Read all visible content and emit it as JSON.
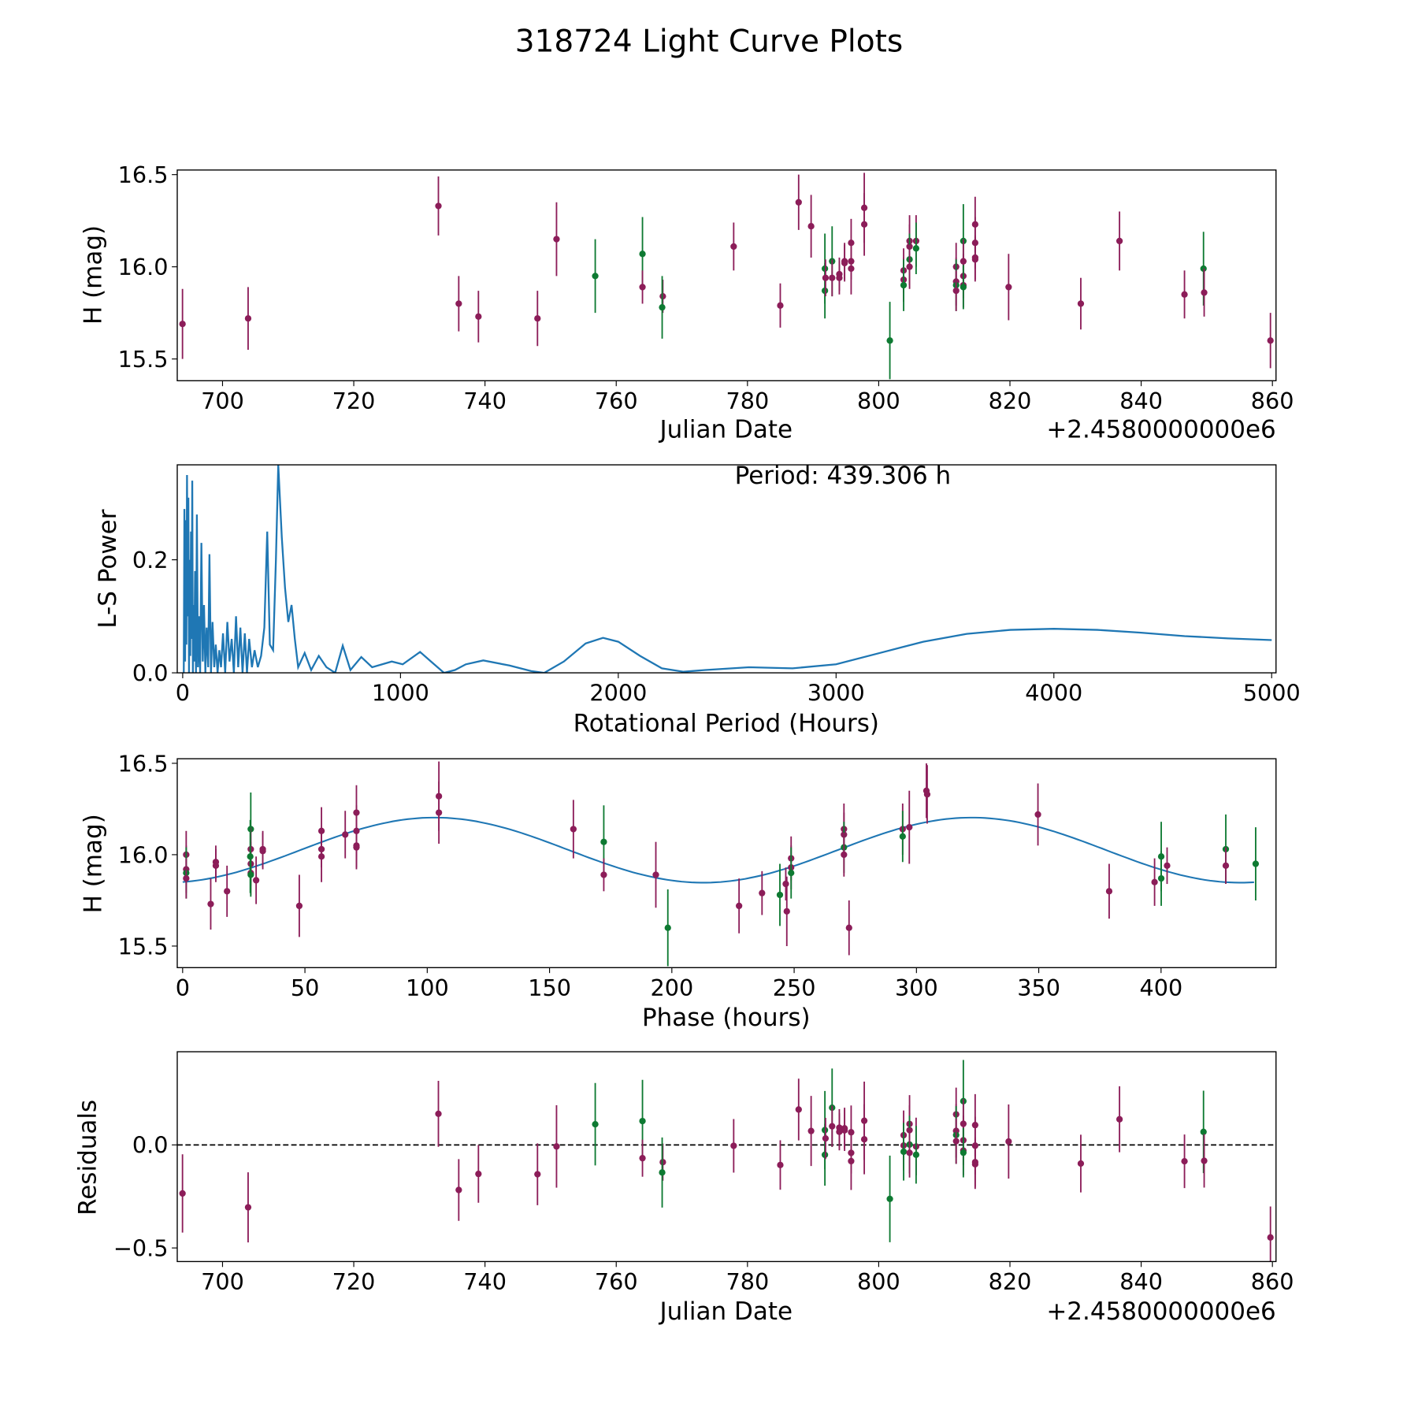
{
  "title": "318724 Light Curve Plots",
  "colors": {
    "ztf_r": "#8c1d59",
    "ztf_g": "#0e7a32",
    "model": "#1f77b4",
    "periodogram": "#1f77b4"
  },
  "chart_data": [
    {
      "type": "scatter",
      "id": "lightcurve",
      "xlabel": "Julian Date",
      "ylabel": "H (mag)",
      "offset_label": "+2.4580000000e6",
      "xlim": [
        693.1,
        860.55
      ],
      "ylim": [
        15.382,
        16.525
      ],
      "xticks": [
        700,
        720,
        740,
        760,
        780,
        800,
        820,
        840,
        860
      ],
      "yticks": [
        {
          "v": 15.5,
          "label": "15.5"
        },
        {
          "v": 16.0,
          "label": "16.0"
        },
        {
          "v": 16.5,
          "label": "16.5"
        }
      ],
      "points_format": [
        "julian_date_offset",
        "H_mag",
        "error",
        "band"
      ],
      "points": [
        [
          693.9,
          15.69,
          0.19,
          "m"
        ],
        [
          703.9,
          15.72,
          0.17,
          "m"
        ],
        [
          732.9,
          16.33,
          0.16,
          "m"
        ],
        [
          736.0,
          15.8,
          0.15,
          "m"
        ],
        [
          739.0,
          15.73,
          0.14,
          "m"
        ],
        [
          748.0,
          15.72,
          0.15,
          "m"
        ],
        [
          750.9,
          16.15,
          0.2,
          "m"
        ],
        [
          756.8,
          15.95,
          0.2,
          "g"
        ],
        [
          764.0,
          16.07,
          0.2,
          "g"
        ],
        [
          764.0,
          15.89,
          0.09,
          "m"
        ],
        [
          767.1,
          15.84,
          0.09,
          "m"
        ],
        [
          767.0,
          15.78,
          0.17,
          "g"
        ],
        [
          777.9,
          16.11,
          0.13,
          "m"
        ],
        [
          785.0,
          15.79,
          0.12,
          "m"
        ],
        [
          787.8,
          16.35,
          0.15,
          "m"
        ],
        [
          789.7,
          16.22,
          0.17,
          "m"
        ],
        [
          791.8,
          15.99,
          0.19,
          "g"
        ],
        [
          791.8,
          15.87,
          0.15,
          "g"
        ],
        [
          791.9,
          15.94,
          0.1,
          "m"
        ],
        [
          792.9,
          16.03,
          0.19,
          "g"
        ],
        [
          792.9,
          15.94,
          0.1,
          "m"
        ],
        [
          794.0,
          15.96,
          0.09,
          "m"
        ],
        [
          794.0,
          15.94,
          0.09,
          "m"
        ],
        [
          794.8,
          16.03,
          0.1,
          "m"
        ],
        [
          794.8,
          16.02,
          0.1,
          "m"
        ],
        [
          795.8,
          16.03,
          0.1,
          "m"
        ],
        [
          795.8,
          15.99,
          0.14,
          "m"
        ],
        [
          795.8,
          16.13,
          0.13,
          "m"
        ],
        [
          797.8,
          16.32,
          0.19,
          "m"
        ],
        [
          797.8,
          16.23,
          0.17,
          "m"
        ],
        [
          801.7,
          15.6,
          0.21,
          "g"
        ],
        [
          803.8,
          15.98,
          0.12,
          "m"
        ],
        [
          803.8,
          15.93,
          0.12,
          "m"
        ],
        [
          803.8,
          15.9,
          0.14,
          "g"
        ],
        [
          804.7,
          16.14,
          0.14,
          "m"
        ],
        [
          804.7,
          16.11,
          0.12,
          "m"
        ],
        [
          804.7,
          16.04,
          0.14,
          "g"
        ],
        [
          804.7,
          16.0,
          0.12,
          "m"
        ],
        [
          805.7,
          16.14,
          0.14,
          "m"
        ],
        [
          805.7,
          16.1,
          0.14,
          "g"
        ],
        [
          811.8,
          16.0,
          0.13,
          "m"
        ],
        [
          811.8,
          15.92,
          0.13,
          "m"
        ],
        [
          811.8,
          15.9,
          0.14,
          "g"
        ],
        [
          811.8,
          15.87,
          0.11,
          "m"
        ],
        [
          812.9,
          16.14,
          0.2,
          "g"
        ],
        [
          812.9,
          16.03,
          0.12,
          "m"
        ],
        [
          812.9,
          15.95,
          0.12,
          "m"
        ],
        [
          812.9,
          15.9,
          0.12,
          "m"
        ],
        [
          812.9,
          15.89,
          0.12,
          "g"
        ],
        [
          814.7,
          16.23,
          0.15,
          "m"
        ],
        [
          814.7,
          16.13,
          0.14,
          "m"
        ],
        [
          814.7,
          16.05,
          0.12,
          "m"
        ],
        [
          814.7,
          16.04,
          0.12,
          "m"
        ],
        [
          819.8,
          15.89,
          0.18,
          "m"
        ],
        [
          830.8,
          15.8,
          0.14,
          "m"
        ],
        [
          836.7,
          16.14,
          0.16,
          "m"
        ],
        [
          846.6,
          15.85,
          0.13,
          "m"
        ],
        [
          849.5,
          15.99,
          0.2,
          "g"
        ],
        [
          849.6,
          15.86,
          0.13,
          "m"
        ],
        [
          859.7,
          15.6,
          0.15,
          "m"
        ]
      ]
    },
    {
      "type": "line",
      "id": "periodogram",
      "xlabel": "Rotational Period (Hours)",
      "ylabel": "L-S Power",
      "annotation": "Period: 439.306 h",
      "period_hours": 439.306,
      "xlim": [
        -25,
        5020
      ],
      "ylim": [
        0,
        0.368
      ],
      "xticks": [
        0,
        1000,
        2000,
        3000,
        4000,
        5000
      ],
      "yticks": [
        {
          "v": 0,
          "label": "0.0"
        },
        {
          "v": 0.2,
          "label": "0.2"
        }
      ],
      "series": [
        [
          5,
          0.0
        ],
        [
          8,
          0.29
        ],
        [
          11,
          0.02
        ],
        [
          14,
          0.27
        ],
        [
          17,
          0.05
        ],
        [
          20,
          0.35
        ],
        [
          23,
          0.1
        ],
        [
          26,
          0.31
        ],
        [
          29,
          0.0
        ],
        [
          32,
          0.2
        ],
        [
          35,
          0.03
        ],
        [
          38,
          0.25
        ],
        [
          41,
          0.06
        ],
        [
          44,
          0.34
        ],
        [
          47,
          0.0
        ],
        [
          50,
          0.12
        ],
        [
          53,
          0.02
        ],
        [
          57,
          0.18
        ],
        [
          61,
          0.0
        ],
        [
          65,
          0.28
        ],
        [
          70,
          0.01
        ],
        [
          75,
          0.1
        ],
        [
          80,
          0.0
        ],
        [
          86,
          0.23
        ],
        [
          92,
          0.02
        ],
        [
          98,
          0.12
        ],
        [
          104,
          0.0
        ],
        [
          110,
          0.08
        ],
        [
          117,
          0.01
        ],
        [
          123,
          0.21
        ],
        [
          130,
          0.0
        ],
        [
          137,
          0.09
        ],
        [
          145,
          0.01
        ],
        [
          152,
          0.05
        ],
        [
          160,
          0.0
        ],
        [
          168,
          0.04
        ],
        [
          176,
          0.01
        ],
        [
          185,
          0.07
        ],
        [
          195,
          0.0
        ],
        [
          205,
          0.09
        ],
        [
          215,
          0.02
        ],
        [
          225,
          0.06
        ],
        [
          235,
          0.0
        ],
        [
          245,
          0.1
        ],
        [
          255,
          0.01
        ],
        [
          265,
          0.08
        ],
        [
          275,
          0.0
        ],
        [
          285,
          0.07
        ],
        [
          295,
          0.0
        ],
        [
          305,
          0.06
        ],
        [
          318,
          0.01
        ],
        [
          330,
          0.04
        ],
        [
          345,
          0.01
        ],
        [
          360,
          0.03
        ],
        [
          375,
          0.08
        ],
        [
          388,
          0.25
        ],
        [
          400,
          0.05
        ],
        [
          415,
          0.04
        ],
        [
          428,
          0.2
        ],
        [
          439,
          0.368
        ],
        [
          455,
          0.24
        ],
        [
          470,
          0.15
        ],
        [
          485,
          0.09
        ],
        [
          500,
          0.12
        ],
        [
          515,
          0.06
        ],
        [
          530,
          0.01
        ],
        [
          560,
          0.035
        ],
        [
          590,
          0.005
        ],
        [
          625,
          0.03
        ],
        [
          660,
          0.01
        ],
        [
          700,
          0.0
        ],
        [
          735,
          0.048
        ],
        [
          770,
          0.005
        ],
        [
          820,
          0.028
        ],
        [
          870,
          0.01
        ],
        [
          960,
          0.02
        ],
        [
          1010,
          0.015
        ],
        [
          1090,
          0.037
        ],
        [
          1140,
          0.02
        ],
        [
          1200,
          0.0
        ],
        [
          1250,
          0.005
        ],
        [
          1300,
          0.015
        ],
        [
          1380,
          0.022
        ],
        [
          1500,
          0.013
        ],
        [
          1600,
          0.003
        ],
        [
          1660,
          0.0
        ],
        [
          1750,
          0.02
        ],
        [
          1850,
          0.052
        ],
        [
          1930,
          0.062
        ],
        [
          2000,
          0.055
        ],
        [
          2100,
          0.03
        ],
        [
          2200,
          0.008
        ],
        [
          2300,
          0.002
        ],
        [
          2400,
          0.005
        ],
        [
          2600,
          0.01
        ],
        [
          2800,
          0.008
        ],
        [
          3000,
          0.015
        ],
        [
          3200,
          0.035
        ],
        [
          3400,
          0.055
        ],
        [
          3600,
          0.069
        ],
        [
          3800,
          0.076
        ],
        [
          4000,
          0.078
        ],
        [
          4200,
          0.076
        ],
        [
          4400,
          0.071
        ],
        [
          4600,
          0.065
        ],
        [
          4800,
          0.061
        ],
        [
          5000,
          0.058
        ]
      ]
    },
    {
      "type": "scatter",
      "id": "phased",
      "xlabel": "Phase (hours)",
      "ylabel": "H (mag)",
      "xlim": [
        -2.2,
        447
      ],
      "ylim": [
        15.382,
        16.525
      ],
      "xticks": [
        0,
        50,
        100,
        150,
        200,
        250,
        300,
        350,
        400
      ],
      "yticks": [
        {
          "v": 15.5,
          "label": "15.5"
        },
        {
          "v": 16.0,
          "label": "16.0"
        },
        {
          "v": 16.5,
          "label": "16.5"
        }
      ],
      "phase_reference": {
        "julian_date_offset": 693.9,
        "phase_hours": 247
      },
      "model": {
        "mean": 16.025,
        "amplitude": 0.178,
        "peak_phase_hours": 103,
        "harmonic": 2
      }
    },
    {
      "type": "scatter",
      "id": "residuals",
      "xlabel": "Julian Date",
      "ylabel": "Residuals",
      "offset_label": "+2.4580000000e6",
      "xlim": [
        693.1,
        860.55
      ],
      "ylim": [
        -0.566,
        0.452
      ],
      "xticks": [
        700,
        720,
        740,
        760,
        780,
        800,
        820,
        840,
        860
      ],
      "yticks": [
        {
          "v": -0.5,
          "label": "−0.5"
        },
        {
          "v": 0,
          "label": "0.0"
        }
      ],
      "zero_line": true
    }
  ]
}
